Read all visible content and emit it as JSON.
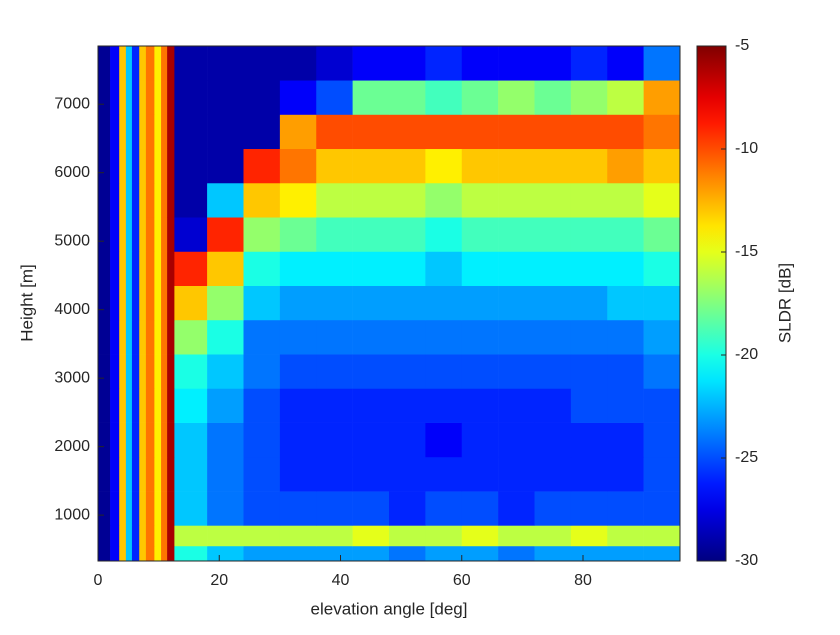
{
  "chart_data": {
    "type": "heatmap",
    "xlabel": "elevation angle [deg]",
    "ylabel": "Height [m]",
    "colorbar_label": "SLDR [dB]",
    "colormap": "jet",
    "xbins": [
      0,
      2,
      3.5,
      4.6,
      5.6,
      6.8,
      7.9,
      9.3,
      10.4,
      11.4,
      12.6,
      18,
      24,
      30,
      36,
      42,
      48,
      54,
      60,
      66,
      72,
      78,
      84,
      90,
      96
    ],
    "ybins": [
      330,
      550,
      850,
      1350,
      1850,
      2350,
      2850,
      3350,
      3850,
      4350,
      4850,
      5350,
      5850,
      6350,
      6850,
      7350,
      7850
    ],
    "z": [
      [
        -29.5,
        -27,
        -13,
        -22,
        -26,
        -13,
        -11,
        -14,
        -11,
        -6,
        -20,
        -22,
        -23,
        -23,
        -23,
        -23,
        -24,
        -23,
        -23,
        -24,
        -23,
        -23,
        -23,
        -23
      ],
      [
        -29.5,
        -27,
        -13,
        -22,
        -26,
        -13,
        -11,
        -14,
        -11,
        -6,
        -16,
        -16,
        -16,
        -16,
        -16,
        -15,
        -16,
        -16,
        -15,
        -16,
        -16,
        -15,
        -16,
        -16
      ],
      [
        -29.5,
        -27,
        -13,
        -22,
        -26,
        -13,
        -11,
        -14,
        -11,
        -6,
        -22,
        -24,
        -25,
        -25,
        -25,
        -25,
        -26,
        -25,
        -25,
        -26,
        -25,
        -25,
        -25,
        -25
      ],
      [
        -29.5,
        -27,
        -13,
        -22,
        -26,
        -13,
        -11,
        -14,
        -11,
        -6,
        -22,
        -24,
        -25,
        -26,
        -26,
        -26,
        -26,
        -26,
        -26,
        -26,
        -26,
        -26,
        -26,
        -25
      ],
      [
        -29.5,
        -27,
        -13,
        -22,
        -26,
        -13,
        -11,
        -14,
        -11,
        -6,
        -22,
        -24,
        -25,
        -26,
        -26,
        -26,
        -26,
        -27,
        -26,
        -26,
        -26,
        -26,
        -26,
        -25
      ],
      [
        -29.5,
        -27,
        -13,
        -22,
        -26,
        -13,
        -11,
        -14,
        -11,
        -6,
        -21,
        -23,
        -25,
        -26,
        -26,
        -26,
        -26,
        -26,
        -26,
        -26,
        -26,
        -25,
        -25,
        -25
      ],
      [
        -29.5,
        -27,
        -13,
        -22,
        -26,
        -13,
        -11,
        -14,
        -11,
        -6,
        -20,
        -22,
        -24,
        -25,
        -25,
        -25,
        -25,
        -25,
        -25,
        -25,
        -25,
        -25,
        -25,
        -24
      ],
      [
        -29.5,
        -27,
        -13,
        -22,
        -26,
        -13,
        -11,
        -14,
        -11,
        -6,
        -17,
        -20,
        -24,
        -24,
        -24,
        -24,
        -24,
        -24,
        -24,
        -24,
        -24,
        -24,
        -24,
        -23
      ],
      [
        -29.5,
        -27,
        -13,
        -22,
        -26,
        -13,
        -11,
        -14,
        -11,
        -6,
        -13,
        -17,
        -22,
        -23,
        -23,
        -23,
        -23,
        -23,
        -23,
        -23,
        -23,
        -23,
        -22,
        -22
      ],
      [
        -29.5,
        -27,
        -13,
        -22,
        -26,
        -13,
        -11,
        -14,
        -11,
        -6,
        -9,
        -13,
        -20,
        -21,
        -21,
        -21,
        -21,
        -22,
        -21,
        -21,
        -21,
        -21,
        -21,
        -20
      ],
      [
        -29.5,
        -27,
        -13,
        -22,
        -26,
        -13,
        -11,
        -14,
        -11,
        -6,
        -28,
        -9,
        -17,
        -18,
        -19,
        -19,
        -19,
        -20,
        -19,
        -19,
        -19,
        -19,
        -19,
        -18
      ],
      [
        -29.5,
        -27,
        -13,
        -22,
        -26,
        -13,
        -11,
        -14,
        -11,
        -6,
        -29,
        -22,
        -13,
        -14,
        -16,
        -16,
        -16,
        -17,
        -16,
        -16,
        -16,
        -16,
        -16,
        -15
      ],
      [
        -29.5,
        -27,
        -13,
        -22,
        -26,
        -13,
        -11,
        -14,
        -11,
        -6,
        -29,
        -29,
        -9,
        -11,
        -13,
        -13,
        -13,
        -14,
        -13,
        -13,
        -13,
        -13,
        -12,
        -13
      ],
      [
        -29.5,
        -27,
        -13,
        -22,
        -26,
        -13,
        -11,
        -14,
        -11,
        -6,
        -29,
        -29,
        -29,
        -12,
        -10,
        -10,
        -10,
        -10,
        -10,
        -10,
        -10,
        -10,
        -10,
        -11
      ],
      [
        -29.5,
        -27,
        -13,
        -22,
        -26,
        -13,
        -11,
        -14,
        -11,
        -6,
        -29,
        -29,
        -29,
        -27,
        -25,
        -18,
        -18,
        -19,
        -18,
        -17,
        -18,
        -17,
        -16,
        -12
      ],
      [
        -29.5,
        -27,
        -13,
        -22,
        -26,
        -13,
        -11,
        -14,
        -11,
        -6,
        -29,
        -29,
        -29,
        -29,
        -28,
        -27,
        -27,
        -26,
        -27,
        -27,
        -27,
        -26,
        -27,
        -24
      ]
    ],
    "xlim": [
      0,
      96
    ],
    "xticks": [
      0,
      20,
      40,
      60,
      80
    ],
    "ylim": [
      330,
      7850
    ],
    "yticks": [
      1000,
      2000,
      3000,
      4000,
      5000,
      6000,
      7000
    ],
    "clim": [
      -30,
      -5
    ],
    "cticks": [
      -30,
      -25,
      -20,
      -15,
      -10,
      -5
    ]
  }
}
